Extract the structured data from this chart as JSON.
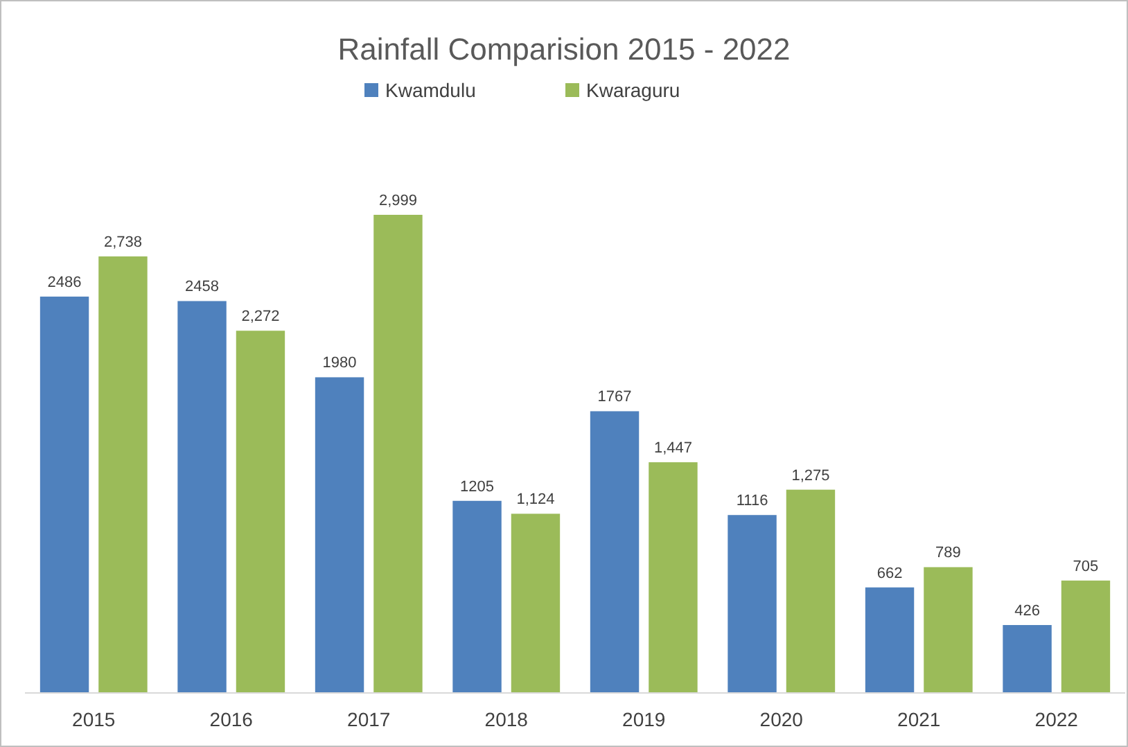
{
  "chart_data": {
    "type": "bar",
    "title": "Rainfall Comparision 2015 - 2022",
    "categories": [
      "2015",
      "2016",
      "2017",
      "2018",
      "2019",
      "2020",
      "2021",
      "2022"
    ],
    "series": [
      {
        "name": "Kwamdulu",
        "color": "#4f81bd",
        "values": [
          2486,
          2458,
          1980,
          1205,
          1767,
          1116,
          662,
          426
        ],
        "value_labels": [
          "2486",
          "2458",
          "1980",
          "1205",
          "1767",
          "1116",
          "662",
          "426"
        ]
      },
      {
        "name": "Kwaraguru",
        "color": "#9bbb59",
        "values": [
          2738,
          2272,
          2999,
          1124,
          1447,
          1275,
          789,
          705
        ],
        "value_labels": [
          "2,738",
          "2,272",
          "2,999",
          "1,124",
          "1,447",
          "1,275",
          "789",
          "705"
        ]
      }
    ],
    "legend": "top"
  }
}
